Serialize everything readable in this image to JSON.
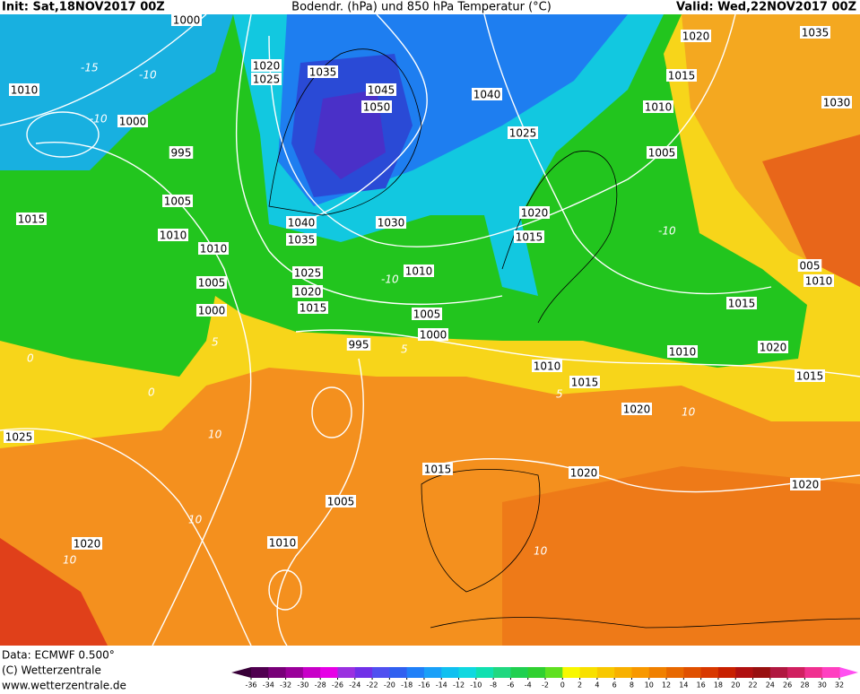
{
  "header": {
    "init": "Init: Sat,18NOV2017 00Z",
    "title": "Bodendr. (hPa) und 850 hPa Temperatur (°C)",
    "valid": "Valid: Wed,22NOV2017 00Z"
  },
  "map": {
    "isobar_labels": [
      "1000",
      "1020",
      "1025",
      "1035",
      "1045",
      "1050",
      "1040",
      "1025",
      "1020",
      "1015",
      "1010",
      "1005",
      "1010",
      "1000",
      "995",
      "1005",
      "1015",
      "1010",
      "1010",
      "1005",
      "1000",
      "1040",
      "1035",
      "1030",
      "1020",
      "1015",
      "1010",
      "1025",
      "1020",
      "1015",
      "1005",
      "1000",
      "995",
      "1010",
      "1015",
      "1020",
      "1015",
      "1020",
      "1005",
      "1010",
      "1020",
      "1025",
      "1015",
      "1010",
      "1020",
      "1015",
      "1020",
      "1035",
      "1030",
      "1010",
      "005"
    ],
    "temperature_labels": [
      "-15",
      "-10",
      "-10",
      "-10",
      "-10",
      "0",
      "5",
      "5",
      "10",
      "10",
      "10",
      "10",
      "0",
      "5",
      "10"
    ]
  },
  "footer": {
    "data": "Data: ECMWF   0.500°",
    "copyright": "(C) Wetterzentrale",
    "url": "www.wetterzentrale.de"
  },
  "colorbar": {
    "ticks": [
      -36,
      -34,
      -32,
      -30,
      -28,
      -26,
      -24,
      -22,
      -20,
      -18,
      -16,
      -14,
      -12,
      -10,
      -8,
      -6,
      -4,
      -2,
      0,
      2,
      4,
      6,
      8,
      10,
      12,
      14,
      16,
      18,
      20,
      22,
      24,
      26,
      28,
      30,
      32
    ],
    "colors": [
      "#380038",
      "#500050",
      "#780078",
      "#9a009a",
      "#c800c8",
      "#e600e6",
      "#9a30e0",
      "#7030e8",
      "#5050f0",
      "#3060f0",
      "#2080f8",
      "#1aa0f8",
      "#10c0f0",
      "#10d8e0",
      "#10e0b0",
      "#20d880",
      "#20d050",
      "#30d030",
      "#60e020",
      "#f8f800",
      "#f8e000",
      "#f8c800",
      "#f8b000",
      "#f89800",
      "#f08000",
      "#e86800",
      "#e05000",
      "#d83800",
      "#c82000",
      "#b01010",
      "#981010",
      "#b01840",
      "#d02060",
      "#f03090",
      "#ff40c0",
      "#ff50f0"
    ]
  }
}
